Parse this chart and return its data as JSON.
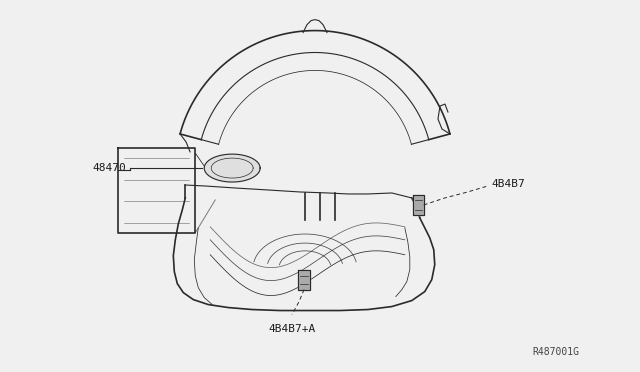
{
  "bg_color": "#f0f0f0",
  "line_color": "#2a2a2a",
  "label_color": "#1a1a1a",
  "ref_color": "#444444",
  "fig_width": 6.4,
  "fig_height": 3.72,
  "dpi": 100,
  "label_48470": "48470",
  "label_4B4B7": "4B4B7",
  "label_4B4B7A": "4B4B7+A",
  "label_ref": "R487001G",
  "annotation_fontsize": 8,
  "ref_fontsize": 7
}
